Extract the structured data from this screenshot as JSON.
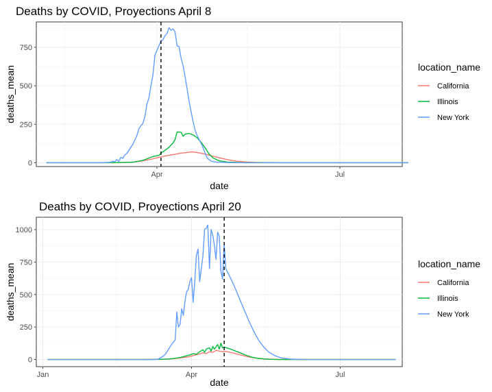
{
  "chart_data": [
    {
      "type": "line",
      "title": "Deaths by COVID, Proyections April 8",
      "xlabel": "date",
      "ylabel": "deaths_mean",
      "x_domain": [
        "2020-02-01",
        "2020-08-01"
      ],
      "ylim": [
        -25,
        915
      ],
      "x_ticks": [
        {
          "date": "2020-04-01",
          "label": "Apr"
        },
        {
          "date": "2020-07-01",
          "label": "Jul"
        }
      ],
      "y_ticks": [
        0,
        250,
        500,
        750
      ],
      "grid": true,
      "reference_line": {
        "date": "2020-04-03",
        "style": "dashed"
      },
      "legend": {
        "title": "location_name",
        "position": "right"
      },
      "series": [
        {
          "name": "California",
          "color": "#F8766D",
          "points": [
            [
              "2020-02-06",
              0
            ],
            [
              "2020-03-05",
              0
            ],
            [
              "2020-03-15",
              1
            ],
            [
              "2020-03-20",
              3
            ],
            [
              "2020-03-25",
              12
            ],
            [
              "2020-03-30",
              25
            ],
            [
              "2020-04-03",
              38
            ],
            [
              "2020-04-07",
              48
            ],
            [
              "2020-04-10",
              55
            ],
            [
              "2020-04-13",
              62
            ],
            [
              "2020-04-16",
              66
            ],
            [
              "2020-04-18",
              70
            ],
            [
              "2020-04-20",
              68
            ],
            [
              "2020-04-22",
              64
            ],
            [
              "2020-04-25",
              56
            ],
            [
              "2020-04-28",
              45
            ],
            [
              "2020-05-02",
              32
            ],
            [
              "2020-05-06",
              20
            ],
            [
              "2020-05-10",
              11
            ],
            [
              "2020-05-15",
              5
            ],
            [
              "2020-05-20",
              2
            ],
            [
              "2020-06-01",
              0
            ],
            [
              "2020-07-01",
              0
            ],
            [
              "2020-08-04",
              0
            ]
          ]
        },
        {
          "name": "Illinois",
          "color": "#00BA38",
          "points": [
            [
              "2020-02-06",
              0
            ],
            [
              "2020-03-10",
              0
            ],
            [
              "2020-03-20",
              3
            ],
            [
              "2020-03-25",
              15
            ],
            [
              "2020-03-28",
              30
            ],
            [
              "2020-03-30",
              40
            ],
            [
              "2020-04-02",
              48
            ],
            [
              "2020-04-03",
              62
            ],
            [
              "2020-04-05",
              80
            ],
            [
              "2020-04-07",
              100
            ],
            [
              "2020-04-09",
              128
            ],
            [
              "2020-04-10",
              150
            ],
            [
              "2020-04-11",
              200
            ],
            [
              "2020-04-13",
              198
            ],
            [
              "2020-04-14",
              172
            ],
            [
              "2020-04-15",
              185
            ],
            [
              "2020-04-17",
              190
            ],
            [
              "2020-04-19",
              180
            ],
            [
              "2020-04-21",
              162
            ],
            [
              "2020-04-23",
              132
            ],
            [
              "2020-04-25",
              95
            ],
            [
              "2020-04-27",
              55
            ],
            [
              "2020-04-29",
              30
            ],
            [
              "2020-05-02",
              12
            ],
            [
              "2020-05-06",
              4
            ],
            [
              "2020-05-15",
              0
            ],
            [
              "2020-08-04",
              0
            ]
          ]
        },
        {
          "name": "New York",
          "color": "#619CFF",
          "points": [
            [
              "2020-02-06",
              0
            ],
            [
              "2020-03-05",
              0
            ],
            [
              "2020-03-09",
              3
            ],
            [
              "2020-03-10",
              10
            ],
            [
              "2020-03-11",
              5
            ],
            [
              "2020-03-12",
              20
            ],
            [
              "2020-03-13",
              8
            ],
            [
              "2020-03-14",
              35
            ],
            [
              "2020-03-15",
              28
            ],
            [
              "2020-03-16",
              50
            ],
            [
              "2020-03-17",
              60
            ],
            [
              "2020-03-18",
              80
            ],
            [
              "2020-03-20",
              120
            ],
            [
              "2020-03-22",
              175
            ],
            [
              "2020-03-23",
              220
            ],
            [
              "2020-03-24",
              240
            ],
            [
              "2020-03-25",
              255
            ],
            [
              "2020-03-26",
              300
            ],
            [
              "2020-03-27",
              380
            ],
            [
              "2020-03-28",
              420
            ],
            [
              "2020-03-29",
              500
            ],
            [
              "2020-03-30",
              570
            ],
            [
              "2020-03-31",
              700
            ],
            [
              "2020-04-01",
              730
            ],
            [
              "2020-04-02",
              760
            ],
            [
              "2020-04-03",
              790
            ],
            [
              "2020-04-04",
              800
            ],
            [
              "2020-04-05",
              825
            ],
            [
              "2020-04-06",
              840
            ],
            [
              "2020-04-07",
              878
            ],
            [
              "2020-04-08",
              860
            ],
            [
              "2020-04-09",
              870
            ],
            [
              "2020-04-10",
              850
            ],
            [
              "2020-04-11",
              760
            ],
            [
              "2020-04-12",
              755
            ],
            [
              "2020-04-13",
              680
            ],
            [
              "2020-04-14",
              630
            ],
            [
              "2020-04-15",
              560
            ],
            [
              "2020-04-16",
              480
            ],
            [
              "2020-04-17",
              400
            ],
            [
              "2020-04-18",
              330
            ],
            [
              "2020-04-19",
              265
            ],
            [
              "2020-04-20",
              210
            ],
            [
              "2020-04-21",
              175
            ],
            [
              "2020-04-22",
              150
            ],
            [
              "2020-04-23",
              125
            ],
            [
              "2020-04-24",
              95
            ],
            [
              "2020-04-25",
              60
            ],
            [
              "2020-04-26",
              30
            ],
            [
              "2020-04-28",
              10
            ],
            [
              "2020-05-01",
              3
            ],
            [
              "2020-05-10",
              0
            ],
            [
              "2020-08-04",
              0
            ]
          ]
        }
      ]
    },
    {
      "type": "line",
      "title": "Deaths by COVID, Proyections April 20",
      "xlabel": "date",
      "ylabel": "deaths_mean",
      "x_domain": [
        "2019-12-28",
        "2020-08-08"
      ],
      "ylim": [
        -55,
        1095
      ],
      "x_ticks": [
        {
          "date": "2020-01-01",
          "label": "Jan"
        },
        {
          "date": "2020-04-01",
          "label": "Apr"
        },
        {
          "date": "2020-07-01",
          "label": "Jul"
        }
      ],
      "y_ticks": [
        0,
        250,
        500,
        750,
        1000
      ],
      "grid": true,
      "reference_line": {
        "date": "2020-04-21",
        "style": "dashed"
      },
      "legend": {
        "title": "location_name",
        "position": "right"
      },
      "series": [
        {
          "name": "California",
          "color": "#F8766D",
          "points": [
            [
              "2020-01-04",
              0
            ],
            [
              "2020-03-01",
              0
            ],
            [
              "2020-03-15",
              2
            ],
            [
              "2020-03-20",
              5
            ],
            [
              "2020-03-25",
              12
            ],
            [
              "2020-03-30",
              20
            ],
            [
              "2020-04-02",
              30
            ],
            [
              "2020-04-05",
              40
            ],
            [
              "2020-04-08",
              50
            ],
            [
              "2020-04-10",
              45
            ],
            [
              "2020-04-12",
              60
            ],
            [
              "2020-04-14",
              55
            ],
            [
              "2020-04-16",
              70
            ],
            [
              "2020-04-18",
              65
            ],
            [
              "2020-04-20",
              60
            ],
            [
              "2020-04-22",
              62
            ],
            [
              "2020-04-25",
              55
            ],
            [
              "2020-04-28",
              45
            ],
            [
              "2020-05-02",
              32
            ],
            [
              "2020-05-06",
              20
            ],
            [
              "2020-05-10",
              12
            ],
            [
              "2020-05-15",
              5
            ],
            [
              "2020-05-22",
              1
            ],
            [
              "2020-06-01",
              0
            ],
            [
              "2020-08-04",
              0
            ]
          ]
        },
        {
          "name": "Illinois",
          "color": "#00BA38",
          "points": [
            [
              "2020-01-04",
              0
            ],
            [
              "2020-03-05",
              0
            ],
            [
              "2020-03-15",
              2
            ],
            [
              "2020-03-20",
              6
            ],
            [
              "2020-03-25",
              15
            ],
            [
              "2020-03-28",
              25
            ],
            [
              "2020-03-31",
              35
            ],
            [
              "2020-04-02",
              45
            ],
            [
              "2020-04-04",
              40
            ],
            [
              "2020-04-06",
              60
            ],
            [
              "2020-04-08",
              75
            ],
            [
              "2020-04-09",
              55
            ],
            [
              "2020-04-10",
              80
            ],
            [
              "2020-04-12",
              90
            ],
            [
              "2020-04-13",
              65
            ],
            [
              "2020-04-14",
              100
            ],
            [
              "2020-04-15",
              80
            ],
            [
              "2020-04-17",
              115
            ],
            [
              "2020-04-18",
              80
            ],
            [
              "2020-04-19",
              125
            ],
            [
              "2020-04-20",
              90
            ],
            [
              "2020-04-21",
              95
            ],
            [
              "2020-04-23",
              88
            ],
            [
              "2020-04-26",
              75
            ],
            [
              "2020-04-29",
              60
            ],
            [
              "2020-05-02",
              45
            ],
            [
              "2020-05-05",
              30
            ],
            [
              "2020-05-08",
              18
            ],
            [
              "2020-05-12",
              8
            ],
            [
              "2020-05-18",
              2
            ],
            [
              "2020-05-25",
              0
            ],
            [
              "2020-08-04",
              0
            ]
          ]
        },
        {
          "name": "New York",
          "color": "#619CFF",
          "points": [
            [
              "2020-01-04",
              0
            ],
            [
              "2020-03-10",
              0
            ],
            [
              "2020-03-12",
              5
            ],
            [
              "2020-03-14",
              20
            ],
            [
              "2020-03-16",
              40
            ],
            [
              "2020-03-18",
              80
            ],
            [
              "2020-03-20",
              120
            ],
            [
              "2020-03-22",
              150
            ],
            [
              "2020-03-23",
              365
            ],
            [
              "2020-03-24",
              250
            ],
            [
              "2020-03-25",
              270
            ],
            [
              "2020-03-26",
              390
            ],
            [
              "2020-03-27",
              340
            ],
            [
              "2020-03-28",
              450
            ],
            [
              "2020-03-29",
              520
            ],
            [
              "2020-03-30",
              540
            ],
            [
              "2020-03-31",
              600
            ],
            [
              "2020-04-01",
              630
            ],
            [
              "2020-04-02",
              440
            ],
            [
              "2020-04-03",
              600
            ],
            [
              "2020-04-04",
              800
            ],
            [
              "2020-04-05",
              850
            ],
            [
              "2020-04-06",
              600
            ],
            [
              "2020-04-07",
              700
            ],
            [
              "2020-04-08",
              800
            ],
            [
              "2020-04-09",
              1000
            ],
            [
              "2020-04-10",
              1010
            ],
            [
              "2020-04-11",
              1035
            ],
            [
              "2020-04-12",
              700
            ],
            [
              "2020-04-13",
              1000
            ],
            [
              "2020-04-14",
              960
            ],
            [
              "2020-04-15",
              880
            ],
            [
              "2020-04-16",
              770
            ],
            [
              "2020-04-17",
              980
            ],
            [
              "2020-04-18",
              950
            ],
            [
              "2020-04-19",
              680
            ],
            [
              "2020-04-20",
              620
            ],
            [
              "2020-04-21",
              890
            ],
            [
              "2020-04-22",
              700
            ],
            [
              "2020-04-24",
              650
            ],
            [
              "2020-04-27",
              570
            ],
            [
              "2020-04-30",
              480
            ],
            [
              "2020-05-03",
              390
            ],
            [
              "2020-05-06",
              300
            ],
            [
              "2020-05-09",
              220
            ],
            [
              "2020-05-12",
              150
            ],
            [
              "2020-05-15",
              100
            ],
            [
              "2020-05-18",
              60
            ],
            [
              "2020-05-22",
              30
            ],
            [
              "2020-05-26",
              12
            ],
            [
              "2020-06-01",
              3
            ],
            [
              "2020-06-10",
              0
            ],
            [
              "2020-08-04",
              0
            ]
          ]
        }
      ]
    }
  ]
}
